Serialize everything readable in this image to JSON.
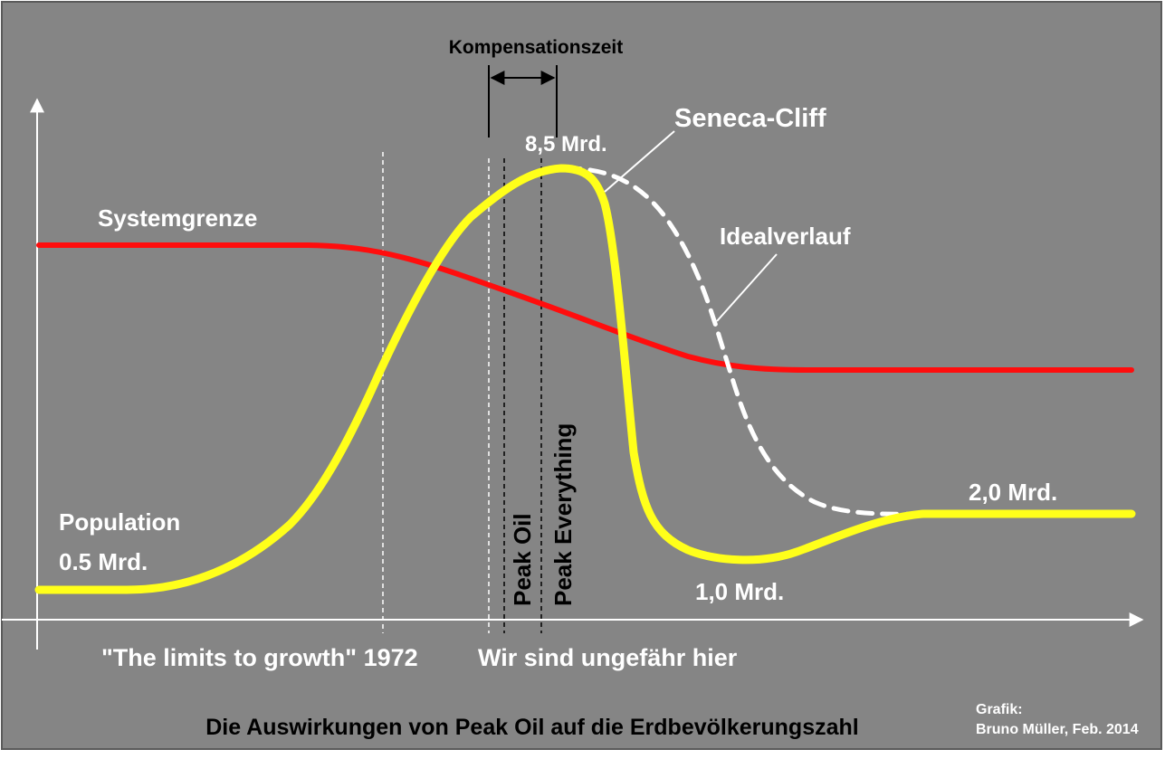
{
  "colors": {
    "background": "#858585",
    "population_curve": "#ffff1a",
    "system_limit_curve": "#ff0d0d",
    "ideal_curve": "#ffffff",
    "text_light": "#ffffff",
    "text_dark": "#000000"
  },
  "labels": {
    "compensation_time": "Kompensationszeit",
    "peak_value": "8,5 Mrd.",
    "seneca_cliff": "Seneca-Cliff",
    "system_limit": "Systemgrenze",
    "ideal_course": "Idealverlauf",
    "population": "Population",
    "start_value": "0.5 Mrd.",
    "end_value": "2,0 Mrd.",
    "trough_value": "1,0 Mrd.",
    "peak_oil": "Peak Oil",
    "peak_everything": "Peak Everything",
    "limits_to_growth": "\"The limits to growth\" 1972",
    "we_are_here": "Wir sind ungefähr hier",
    "title": "Die Auswirkungen von Peak Oil auf die Erdbevölkerungszahl",
    "credit_line1": "Grafik:",
    "credit_line2": "Bruno Müller, Feb. 2014"
  }
}
